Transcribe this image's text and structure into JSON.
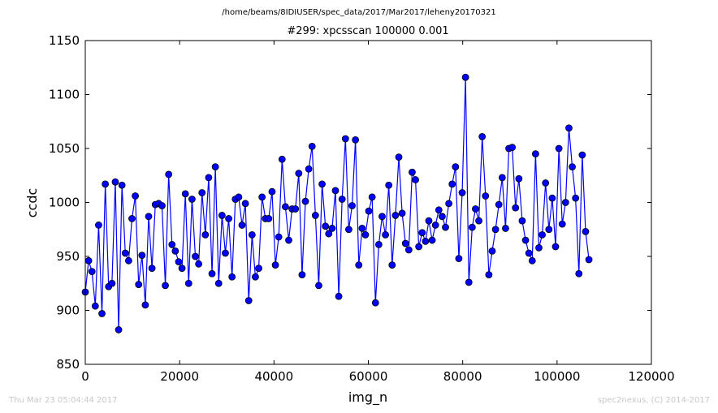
{
  "footer": {
    "timestamp": "Thu Mar 23 05:04:44 2017",
    "credit": "spec2nexus, (C) 2014-2017"
  },
  "colors": {
    "series": "#0000ff",
    "marker_edge": "#000000",
    "axes": "#000000",
    "footer": "#c8c8c8"
  },
  "chart_data": {
    "type": "line",
    "suptitle": "/home/beams/8IDIUSER/spec_data/2017/Mar2017/leheny20170321",
    "title": "#299: xpcsscan 100000 0.001",
    "xlabel": "img_n",
    "ylabel": "ccdc",
    "xlim": [
      0,
      120000
    ],
    "ylim": [
      850,
      1150
    ],
    "xticks": [
      0,
      20000,
      40000,
      60000,
      80000,
      100000,
      120000
    ],
    "yticks": [
      850,
      900,
      950,
      1000,
      1050,
      1100,
      1150
    ],
    "grid": false,
    "legend": "none",
    "marker": "circle",
    "series": [
      {
        "x_start": 0,
        "x_step": 707,
        "values": [
          917,
          946,
          936,
          904,
          979,
          897,
          1017,
          922,
          925,
          1019,
          882,
          1016,
          953,
          946,
          985,
          1006,
          924,
          951,
          905,
          987,
          939,
          998,
          999,
          997,
          923,
          1026,
          961,
          955,
          945,
          939,
          1008,
          925,
          1003,
          950,
          943,
          1009,
          970,
          1023,
          934,
          1033,
          925,
          988,
          953,
          985,
          931,
          1003,
          1005,
          979,
          999,
          909,
          970,
          931,
          939,
          1005,
          985,
          985,
          1010,
          942,
          968,
          1040,
          996,
          965,
          994,
          994,
          1027,
          933,
          1001,
          1031,
          1052,
          988,
          923,
          1017,
          978,
          971,
          976,
          1011,
          913,
          1003,
          1059,
          975,
          997,
          1058,
          942,
          976,
          970,
          992,
          1005,
          907,
          961,
          987,
          970,
          1016,
          942,
          988,
          1042,
          990,
          962,
          956,
          1028,
          1021,
          959,
          972,
          964,
          983,
          965,
          979,
          993,
          987,
          977,
          999,
          1017,
          1033,
          948,
          1009,
          1116,
          926,
          977,
          994,
          983,
          1061,
          1006,
          933,
          955,
          975,
          998,
          1023,
          976,
          1050,
          1051,
          995,
          1022,
          983,
          965,
          953,
          946,
          1045,
          958,
          970,
          1018,
          975,
          1004,
          959,
          1050,
          980,
          1000,
          1069,
          1033,
          1004,
          934,
          1044,
          973,
          947
        ]
      }
    ]
  }
}
